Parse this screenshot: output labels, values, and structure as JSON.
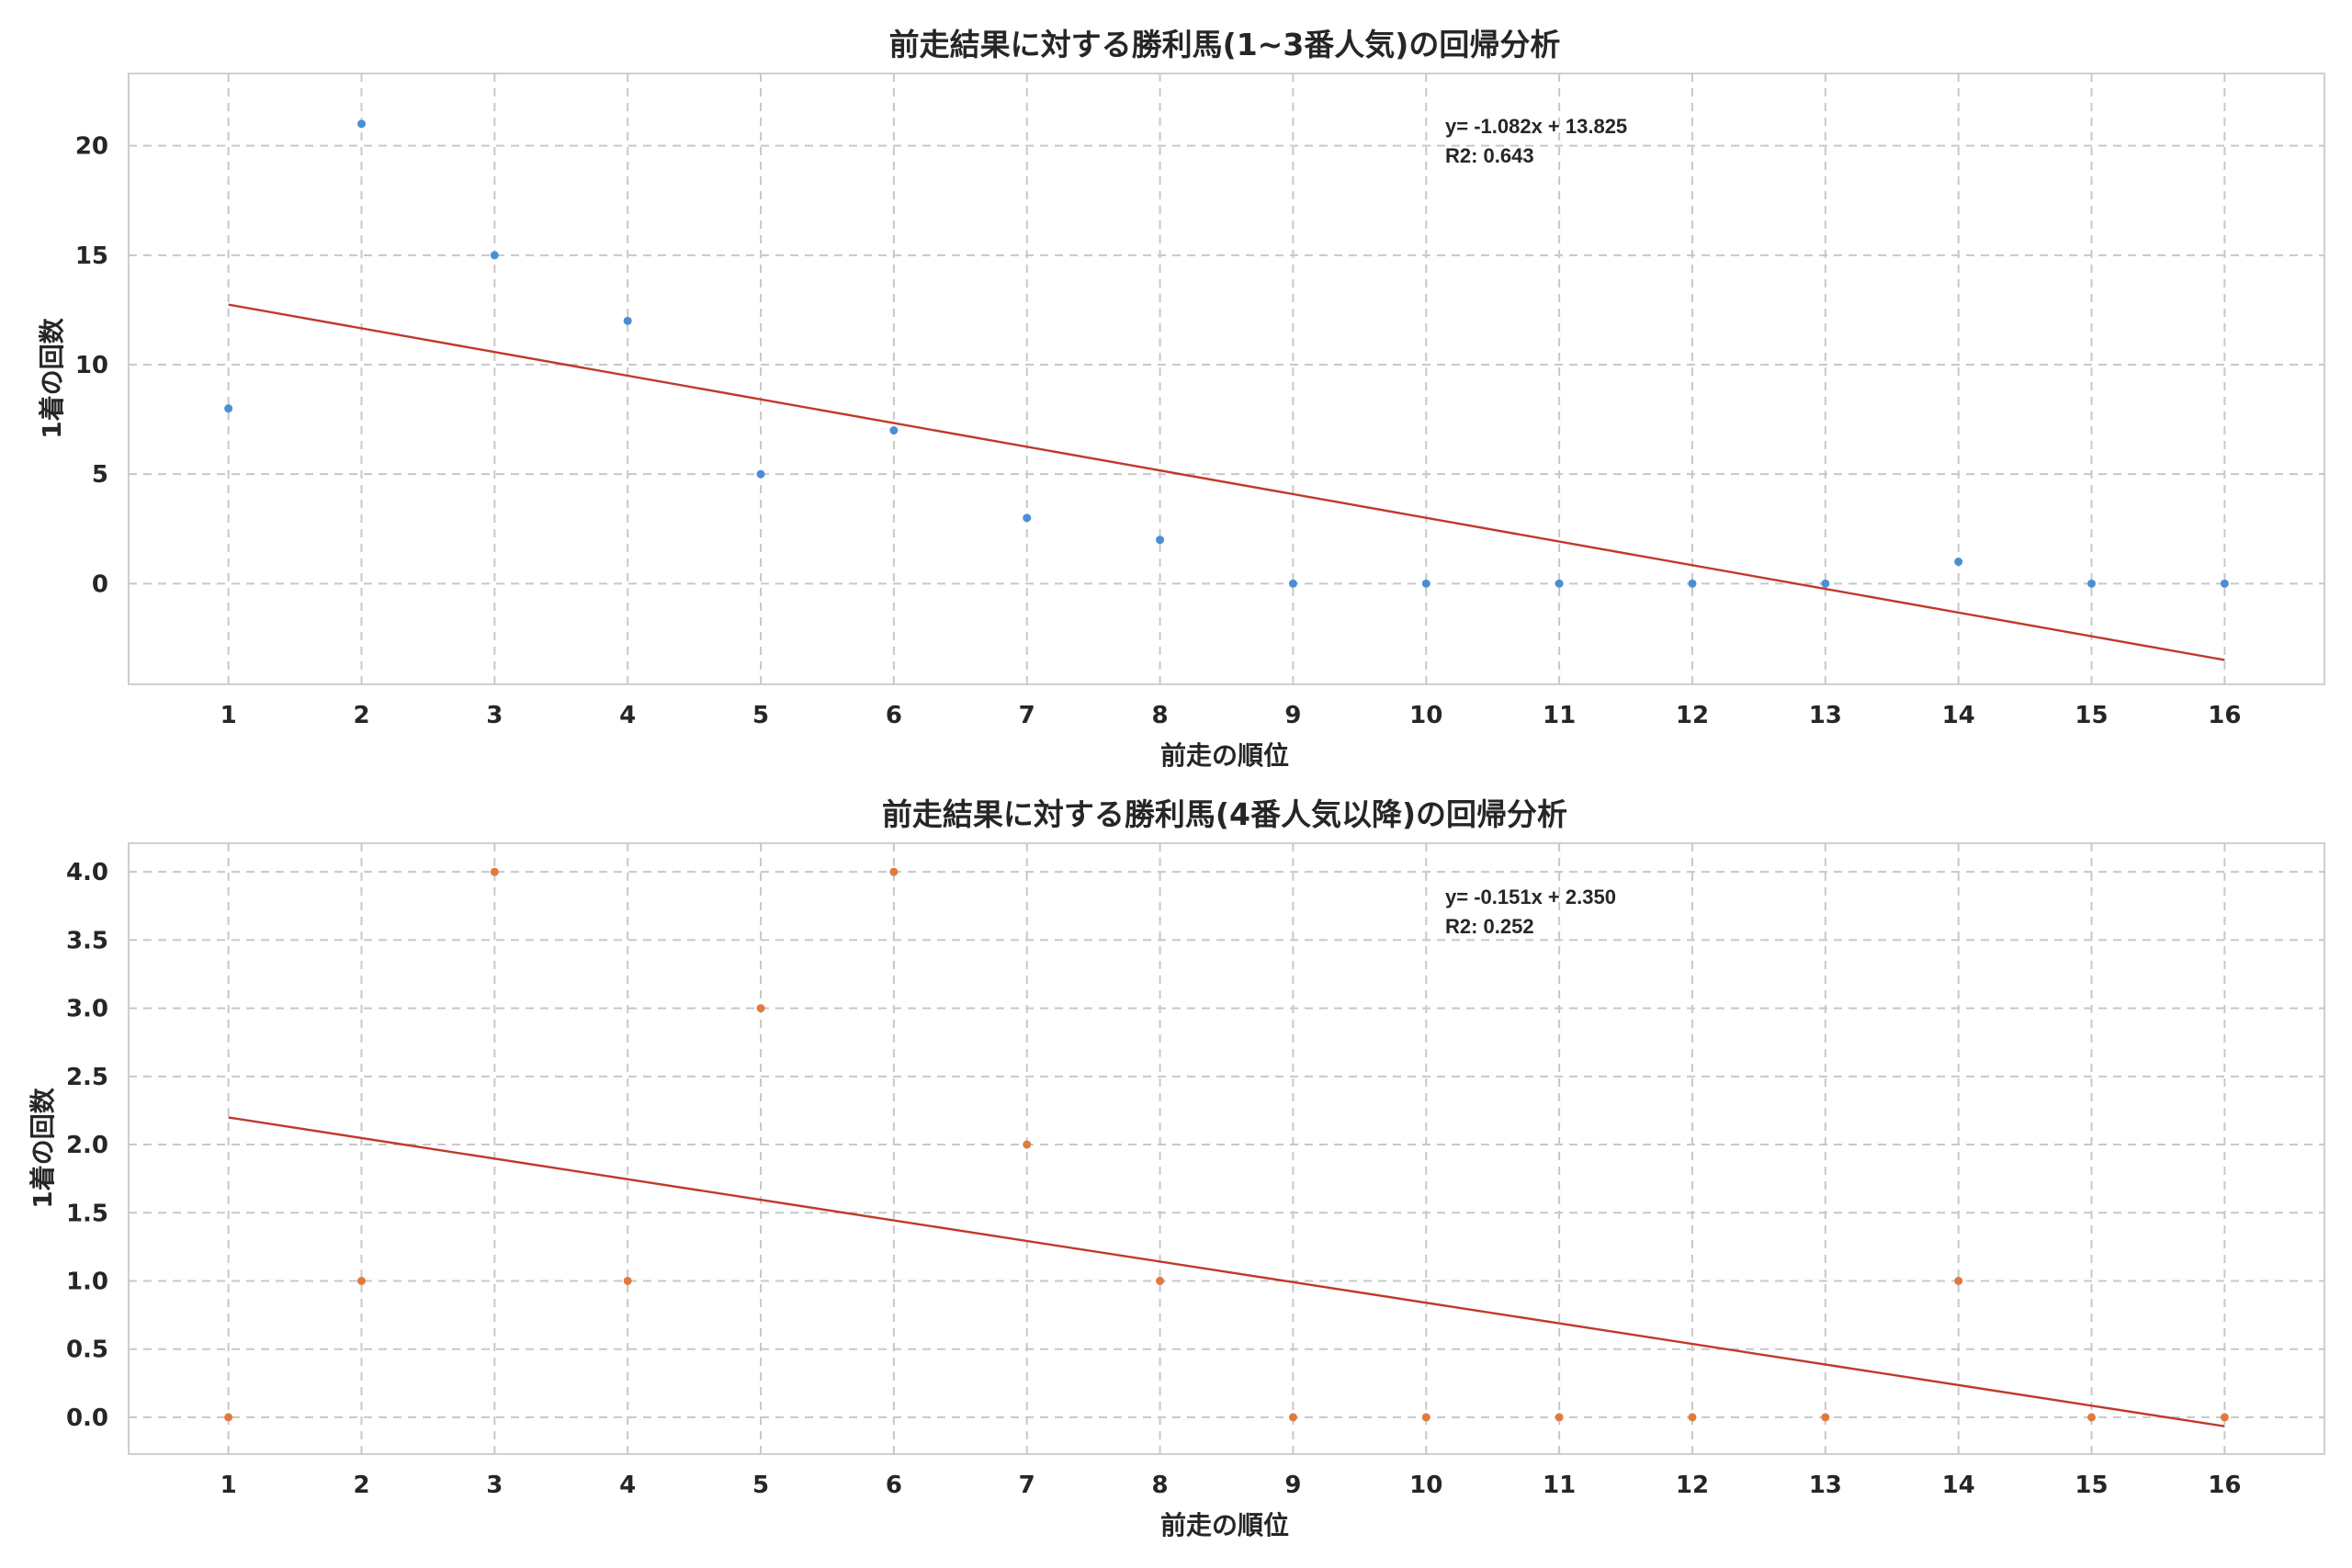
{
  "chart_data": [
    {
      "type": "scatter",
      "title": "前走結果に対する勝利馬(1~3番人気)の回帰分析",
      "xlabel": "前走の順位",
      "ylabel": "1着の回数",
      "x": [
        1,
        2,
        3,
        4,
        5,
        6,
        7,
        8,
        9,
        10,
        11,
        12,
        13,
        14,
        15,
        16
      ],
      "y": [
        8,
        21,
        15,
        12,
        5,
        7,
        3,
        2,
        0,
        0,
        0,
        0,
        0,
        1,
        0,
        0
      ],
      "xticks": [
        1,
        2,
        3,
        4,
        5,
        6,
        7,
        8,
        9,
        10,
        11,
        12,
        13,
        14,
        15,
        16
      ],
      "yticks": [
        0,
        5,
        10,
        15,
        20
      ],
      "ytick_labels": [
        "0",
        "5",
        "10",
        "15",
        "20"
      ],
      "xlim": [
        0.25,
        16.75
      ],
      "ylim": [
        -4.6,
        23.3
      ],
      "regression": {
        "slope": -1.082,
        "intercept": 13.825
      },
      "annotation": [
        "y= -1.082x + 13.825",
        "R2: 0.643"
      ],
      "point_color": "#4a8fd4",
      "line_color": "#c0392b",
      "grid": true
    },
    {
      "type": "scatter",
      "title": "前走結果に対する勝利馬(4番人気以降)の回帰分析",
      "xlabel": "前走の順位",
      "ylabel": "1着の回数",
      "x": [
        1,
        2,
        3,
        4,
        5,
        6,
        7,
        8,
        9,
        10,
        11,
        12,
        13,
        14,
        15,
        16
      ],
      "y": [
        0,
        1,
        4,
        1,
        3,
        4,
        2,
        1,
        0,
        0,
        0,
        0,
        0,
        1,
        0,
        0
      ],
      "xticks": [
        1,
        2,
        3,
        4,
        5,
        6,
        7,
        8,
        9,
        10,
        11,
        12,
        13,
        14,
        15,
        16
      ],
      "yticks": [
        0,
        0.5,
        1,
        1.5,
        2,
        2.5,
        3,
        3.5,
        4
      ],
      "ytick_labels": [
        "0.0",
        "0.5",
        "1.0",
        "1.5",
        "2.0",
        "2.5",
        "3.0",
        "3.5",
        "4.0"
      ],
      "xlim": [
        0.25,
        16.75
      ],
      "ylim": [
        -0.27,
        4.21
      ],
      "regression": {
        "slope": -0.151,
        "intercept": 2.35
      },
      "annotation": [
        "y= -0.151x + 2.350",
        "R2: 0.252"
      ],
      "point_color": "#e07b40",
      "line_color": "#c0392b",
      "grid": true
    }
  ]
}
